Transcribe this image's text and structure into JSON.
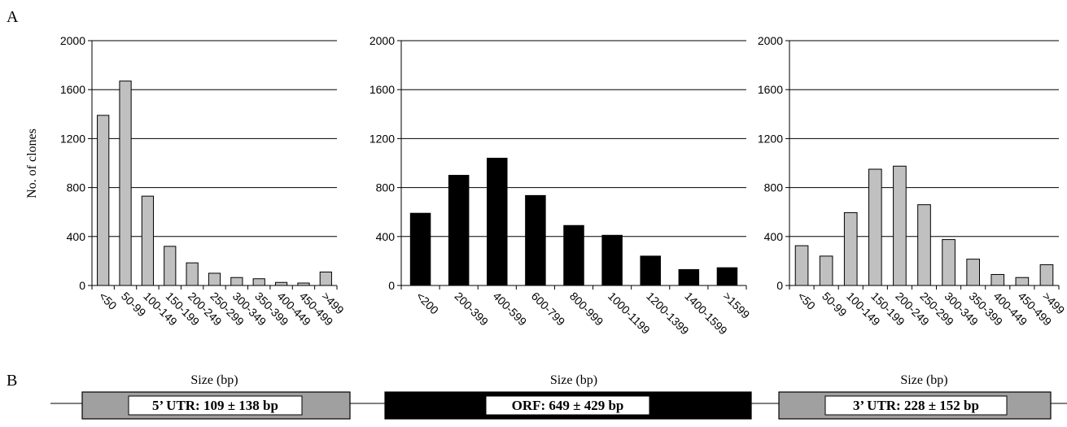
{
  "panel_labels": {
    "a": "A",
    "b": "B"
  },
  "colors": {
    "gray_bar": "#c0c0c0",
    "black_bar": "#000000",
    "utr_box": "#a0a0a0",
    "orf_box": "#000000"
  },
  "chart_data": [
    {
      "type": "bar",
      "categories": [
        "<50",
        "50-99",
        "100-149",
        "150-199",
        "200-249",
        "250-299",
        "300-349",
        "350-399",
        "400-449",
        "450-499",
        ">499"
      ],
      "values": [
        1390,
        1670,
        730,
        320,
        185,
        100,
        65,
        55,
        25,
        20,
        110
      ],
      "ylabel": "No. of clones",
      "xlabel": "Size (bp)",
      "ylim": [
        0,
        2000
      ],
      "yticks": [
        "0",
        "400",
        "800",
        "1200",
        "1600",
        "2000"
      ],
      "bar_color": "#c0c0c0",
      "grid": true
    },
    {
      "type": "bar",
      "categories": [
        "<200",
        "200-399",
        "400-599",
        "600-799",
        "800-999",
        "1000-1199",
        "1200-1399",
        "1400-1599",
        ">1599"
      ],
      "values": [
        590,
        900,
        1040,
        735,
        490,
        410,
        240,
        130,
        145
      ],
      "xlabel": "Size (bp)",
      "ylim": [
        0,
        2000
      ],
      "yticks": [
        "0",
        "400",
        "800",
        "1200",
        "1600",
        "2000"
      ],
      "bar_color": "#000000",
      "grid": true
    },
    {
      "type": "bar",
      "categories": [
        "<50",
        "50-99",
        "100-149",
        "150-199",
        "200-249",
        "250-299",
        "300-349",
        "350-399",
        "400-449",
        "450-499",
        ">499"
      ],
      "values": [
        325,
        240,
        595,
        950,
        975,
        660,
        375,
        215,
        90,
        65,
        170
      ],
      "xlabel": "Size (bp)",
      "ylim": [
        0,
        2000
      ],
      "yticks": [
        "0",
        "400",
        "800",
        "1200",
        "1600",
        "2000"
      ],
      "bar_color": "#c0c0c0",
      "grid": true
    }
  ],
  "regions": [
    {
      "label": "5’ UTR: 109 ± 138 bp",
      "fill": "#a0a0a0"
    },
    {
      "label": "ORF: 649 ± 429 bp",
      "fill": "#000000"
    },
    {
      "label": "3’ UTR: 228 ± 152  bp",
      "fill": "#a0a0a0"
    }
  ]
}
